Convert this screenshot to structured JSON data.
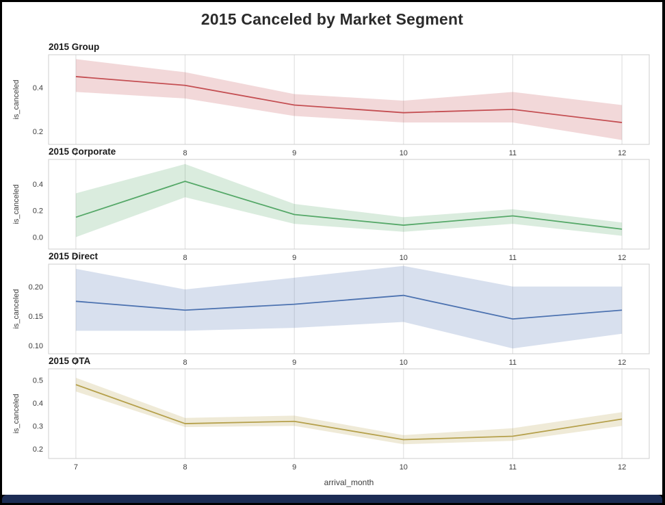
{
  "figure": {
    "title": "2015 Canceled by Market Segment",
    "xlabel": "arrival_month",
    "ylabel": "is_canceled"
  },
  "style": {
    "grid_color": "#dcdcdc",
    "spine_color": "#cccccc",
    "title_color": "#1a1a1a",
    "tick_color": "#3c3c3c",
    "band_opacity": 0.22,
    "frame_color": "#000000",
    "bottom_bar_color": "#1c2c54"
  },
  "chart_data": [
    {
      "type": "line",
      "id": "2015-group",
      "title": "2015 Group",
      "x": [
        7,
        8,
        9,
        10,
        11,
        12
      ],
      "xtick_labels": [
        "7",
        "8",
        "9",
        "10",
        "11",
        "12"
      ],
      "series": [
        {
          "name": "is_canceled mean",
          "values": [
            0.45,
            0.41,
            0.32,
            0.285,
            0.3,
            0.24
          ]
        }
      ],
      "band_low": [
        0.38,
        0.35,
        0.27,
        0.24,
        0.24,
        0.16
      ],
      "band_high": [
        0.53,
        0.47,
        0.37,
        0.34,
        0.38,
        0.32
      ],
      "color": "#c44e52",
      "ylim": [
        0.14,
        0.55
      ],
      "yticks": [
        0.2,
        0.4
      ],
      "ytick_labels": [
        "0.2",
        "0.4"
      ],
      "ylabel": "is_canceled",
      "grid": "vertical",
      "legend": "none"
    },
    {
      "type": "line",
      "id": "2015-corporate",
      "title": "2015 Corporate",
      "x": [
        7,
        8,
        9,
        10,
        11,
        12
      ],
      "xtick_labels": [
        "7",
        "8",
        "9",
        "10",
        "11",
        "12"
      ],
      "series": [
        {
          "name": "is_canceled mean",
          "values": [
            0.15,
            0.42,
            0.17,
            0.09,
            0.16,
            0.06
          ]
        }
      ],
      "band_low": [
        0.0,
        0.3,
        0.1,
        0.04,
        0.1,
        0.01
      ],
      "band_high": [
        0.33,
        0.55,
        0.25,
        0.15,
        0.21,
        0.11
      ],
      "color": "#55a868",
      "ylim": [
        -0.09,
        0.585
      ],
      "yticks": [
        0.0,
        0.2,
        0.4
      ],
      "ytick_labels": [
        "0.0",
        "0.2",
        "0.4"
      ],
      "ylabel": "is_canceled",
      "grid": "vertical",
      "legend": "none"
    },
    {
      "type": "line",
      "id": "2015-direct",
      "title": "2015 Direct",
      "x": [
        7,
        8,
        9,
        10,
        11,
        12
      ],
      "xtick_labels": [
        "7",
        "8",
        "9",
        "10",
        "11",
        "12"
      ],
      "series": [
        {
          "name": "is_canceled mean",
          "values": [
            0.175,
            0.16,
            0.17,
            0.185,
            0.145,
            0.16
          ]
        }
      ],
      "band_low": [
        0.125,
        0.125,
        0.13,
        0.14,
        0.095,
        0.12
      ],
      "band_high": [
        0.23,
        0.195,
        0.215,
        0.235,
        0.2,
        0.2
      ],
      "color": "#4c72b0",
      "ylim": [
        0.086,
        0.238
      ],
      "yticks": [
        0.1,
        0.15,
        0.2
      ],
      "ytick_labels": [
        "0.10",
        "0.15",
        "0.20"
      ],
      "ylabel": "is_canceled",
      "grid": "vertical",
      "legend": "none"
    },
    {
      "type": "line",
      "id": "2015-ota",
      "title": "2015 OTA",
      "x": [
        7,
        8,
        9,
        10,
        11,
        12
      ],
      "xtick_labels": [
        "7",
        "8",
        "9",
        "10",
        "11",
        "12"
      ],
      "series": [
        {
          "name": "is_canceled mean",
          "values": [
            0.48,
            0.31,
            0.32,
            0.24,
            0.255,
            0.33
          ]
        }
      ],
      "band_low": [
        0.45,
        0.295,
        0.3,
        0.22,
        0.235,
        0.3
      ],
      "band_high": [
        0.51,
        0.335,
        0.345,
        0.26,
        0.29,
        0.36
      ],
      "color": "#b5a04b",
      "ylim": [
        0.158,
        0.549
      ],
      "yticks": [
        0.2,
        0.3,
        0.4,
        0.5
      ],
      "ytick_labels": [
        "0.2",
        "0.3",
        "0.4",
        "0.5"
      ],
      "ylabel": "is_canceled",
      "grid": "vertical",
      "legend": "none"
    }
  ]
}
